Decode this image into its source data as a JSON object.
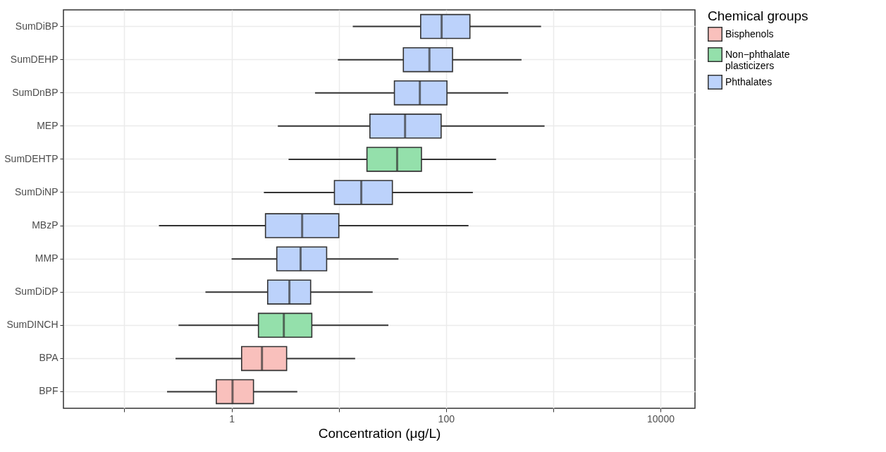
{
  "chart_data": {
    "type": "box",
    "orientation": "horizontal",
    "log": "x",
    "xlabel": "Concentration (μg/L)",
    "legend_title": "Chemical groups",
    "legend": "right",
    "grid": true,
    "xlim": [
      0.027,
      21000
    ],
    "xticks": [
      {
        "value": 0.1,
        "label": null
      },
      1,
      {
        "value": 10,
        "label": null
      },
      100,
      {
        "value": 1000,
        "label": null
      },
      10000
    ],
    "categories": [
      "SumDiBP",
      "SumDEHP",
      "SumDnBP",
      "MEP",
      "SumDEHTP",
      "SumDiNP",
      "MBzP",
      "MMP",
      "SumDiDP",
      "SumDINCH",
      "BPA",
      "BPF"
    ],
    "series": [
      {
        "name": "Bisphenols",
        "color": "#f9c0bc",
        "boxes": [
          null,
          null,
          null,
          null,
          null,
          null,
          null,
          null,
          null,
          null,
          {
            "low": 0.3,
            "q1": 1.24,
            "median": 1.92,
            "q3": 3.26,
            "high": 14.2
          },
          {
            "low": 0.25,
            "q1": 0.72,
            "median": 1.02,
            "q3": 1.6,
            "high": 4.1
          }
        ]
      },
      {
        "name": "Non−phthalate plasticizers",
        "color": "#94e0ab",
        "boxes": [
          null,
          null,
          null,
          null,
          {
            "low": 3.4,
            "q1": 18.3,
            "median": 35,
            "q3": 59,
            "high": 293
          },
          null,
          null,
          null,
          null,
          {
            "low": 0.32,
            "q1": 1.78,
            "median": 3.07,
            "q3": 5.6,
            "high": 29
          },
          null,
          null
        ]
      },
      {
        "name": "Phthalates",
        "color": "#bcd2fb",
        "boxes": [
          {
            "low": 13.5,
            "q1": 58,
            "median": 91,
            "q3": 167,
            "high": 770
          },
          {
            "low": 9.8,
            "q1": 40,
            "median": 70,
            "q3": 115,
            "high": 506
          },
          {
            "low": 6,
            "q1": 33,
            "median": 57,
            "q3": 102,
            "high": 380
          },
          {
            "low": 2.7,
            "q1": 19.5,
            "median": 41.5,
            "q3": 90,
            "high": 830
          },
          null,
          {
            "low": 2.0,
            "q1": 9.1,
            "median": 16.2,
            "q3": 31.6,
            "high": 178
          },
          {
            "low": 0.21,
            "q1": 2.07,
            "median": 4.55,
            "q3": 10,
            "high": 162
          },
          {
            "low": 1.0,
            "q1": 2.64,
            "median": 4.4,
            "q3": 7.7,
            "high": 36
          },
          {
            "low": 0.57,
            "q1": 2.17,
            "median": 3.46,
            "q3": 5.46,
            "high": 20.7
          },
          null,
          null,
          null
        ]
      }
    ]
  }
}
